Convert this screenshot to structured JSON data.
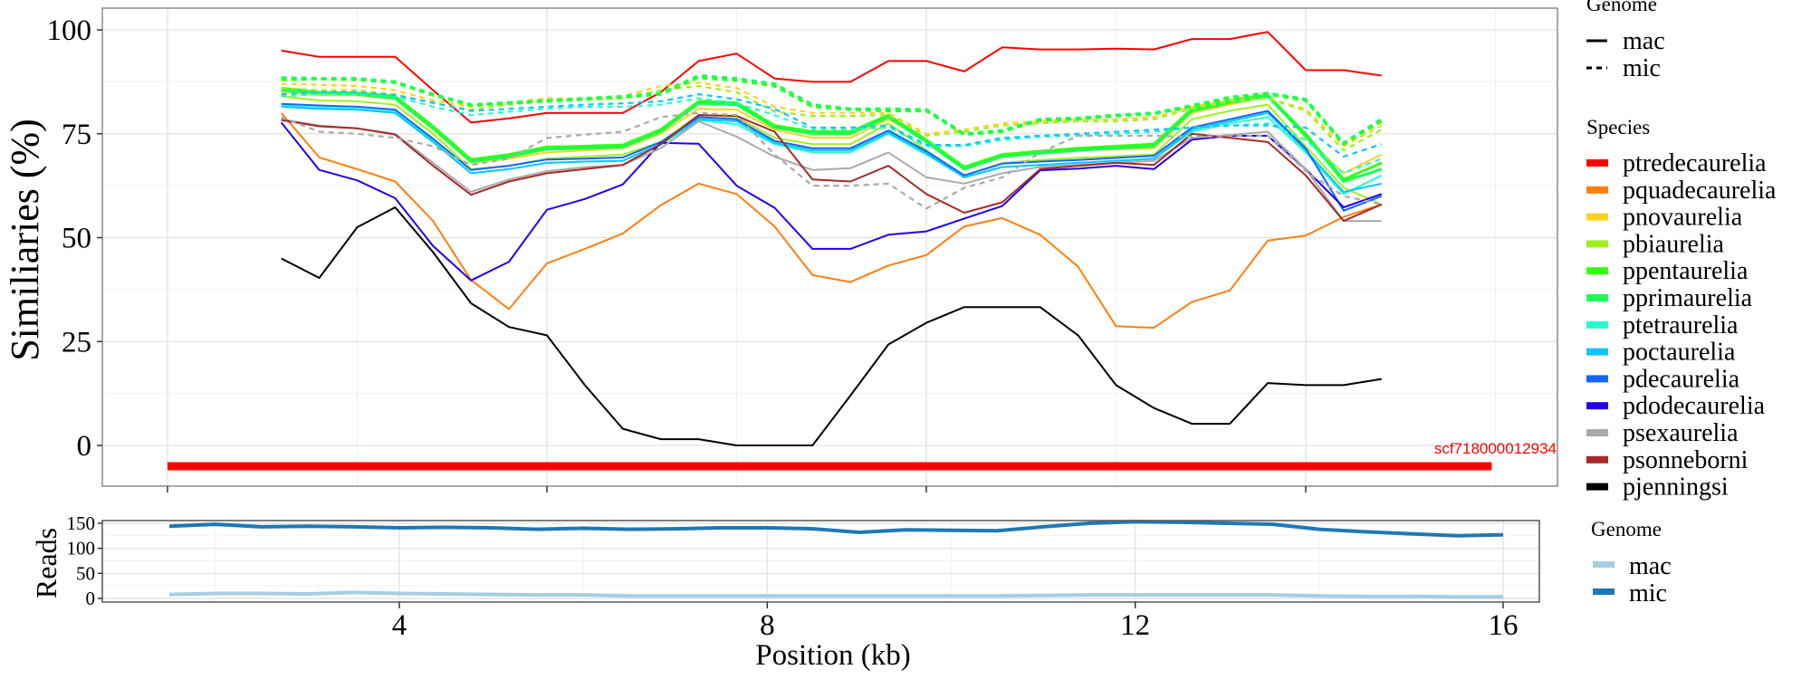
{
  "chart_data": [
    {
      "type": "line",
      "panel": "similarity",
      "title": "",
      "xlabel": "",
      "ylabel": "Similiaries (%)",
      "xlim": [
        -0.3,
        19.2
      ],
      "ylim": [
        -8,
        105
      ],
      "x_ticks": [
        0,
        5,
        10,
        15
      ],
      "x_tick_labels_shown": false,
      "y_ticks": [
        0,
        25,
        50,
        75,
        100
      ],
      "y_tick_labels": [
        "0",
        "25",
        "50",
        "75",
        "100"
      ],
      "grid": true,
      "x": [
        1.5,
        2.0,
        2.5,
        3.0,
        3.5,
        4.0,
        4.5,
        5.0,
        5.5,
        6.0,
        6.5,
        7.0,
        7.5,
        8.0,
        8.5,
        9.0,
        9.5,
        10.0,
        10.5,
        11.0,
        11.5,
        12.0,
        12.5,
        13.0,
        13.5,
        14.0,
        14.5,
        15.0,
        15.5,
        16.0
      ],
      "scaffold": {
        "label": "scf718000012934",
        "start": 0,
        "end": 17.45,
        "y": -5,
        "color": "#ff0000"
      },
      "legend_genome": {
        "title": "Genome",
        "entries": [
          {
            "label": "mac",
            "dash": "solid"
          },
          {
            "label": "mic",
            "dash": "dashed"
          }
        ]
      },
      "legend_species": {
        "title": "Species",
        "entries": [
          {
            "label": "ptredecaurelia",
            "color": "#ff0000"
          },
          {
            "label": "pquadecaurelia",
            "color": "#ff7f0e"
          },
          {
            "label": "pnovaurelia",
            "color": "#ffd21e"
          },
          {
            "label": "pbiaurelia",
            "color": "#a0f020"
          },
          {
            "label": "ppentaurelia",
            "color": "#33ff11"
          },
          {
            "label": "pprimaurelia",
            "color": "#1aff55"
          },
          {
            "label": "ptetraurelia",
            "color": "#22ffcc"
          },
          {
            "label": "poctaurelia",
            "color": "#11c4ff"
          },
          {
            "label": "pdecaurelia",
            "color": "#1166ff"
          },
          {
            "label": "pdodecaurelia",
            "color": "#2200ee"
          },
          {
            "label": "psexaurelia",
            "color": "#aaaaaa"
          },
          {
            "label": "psonneborni",
            "color": "#a52a2a"
          },
          {
            "label": "pjenningsi",
            "color": "#000000"
          }
        ]
      },
      "series": [
        {
          "name": "ptredecaurelia",
          "genome": "mac",
          "values": [
            95,
            93.5,
            93.5,
            93.5,
            85.5,
            77.7,
            78.7,
            80,
            80,
            80,
            85,
            92.5,
            94.3,
            88.3,
            87.5,
            87.5,
            92.5,
            92.5,
            90,
            95.8,
            95.3,
            95.3,
            95.5,
            95.3,
            97.8,
            97.8,
            99.5,
            90.3,
            90.3,
            89
          ]
        },
        {
          "name": "pquadecaurelia",
          "genome": "mac",
          "values": [
            80,
            69.3,
            66.5,
            63.5,
            54,
            39.8,
            32.8,
            43.8,
            47.3,
            51,
            57.8,
            63,
            60.5,
            52.7,
            41,
            39.3,
            43.3,
            45.8,
            52.7,
            54.7,
            50.7,
            43,
            28.7,
            28.3,
            34.5,
            37.3,
            49.3,
            50.5,
            55,
            58
          ]
        },
        {
          "name": "pnovaurelia",
          "genome": "mac",
          "values": [
            85,
            84.3,
            84.3,
            83.3,
            76,
            68,
            69,
            70.5,
            71,
            71.5,
            75,
            81,
            80.8,
            76,
            74,
            74,
            78.5,
            73.5,
            66.5,
            69.5,
            70.3,
            71,
            71.3,
            71.5,
            80,
            82,
            84,
            74,
            65.5,
            70
          ]
        },
        {
          "name": "pbiaurelia",
          "genome": "mac",
          "values": [
            84,
            83,
            82.8,
            82,
            75,
            66.5,
            67.3,
            69,
            69.5,
            70,
            73,
            79.5,
            79,
            74,
            72.5,
            72.5,
            77.5,
            71,
            65,
            68,
            68.7,
            69.2,
            69.6,
            70,
            78.5,
            80.5,
            82,
            72,
            62,
            58
          ]
        },
        {
          "name": "ppentaurelia",
          "genome": "mac",
          "values": [
            86,
            85,
            84.8,
            84,
            76.8,
            68.8,
            70,
            71.8,
            72,
            72.3,
            76,
            82.8,
            82.5,
            77,
            75.5,
            75.5,
            79.5,
            73.5,
            67,
            70,
            70.8,
            71.5,
            72,
            72.5,
            81,
            83,
            84.3,
            75,
            64,
            68
          ]
        },
        {
          "name": "pprimaurelia",
          "genome": "mac",
          "values": [
            85.5,
            84.8,
            84.5,
            83.5,
            76.3,
            68.3,
            69.5,
            71.3,
            71.5,
            71.8,
            75.5,
            82.3,
            82,
            76.5,
            75,
            75,
            79,
            73,
            66.5,
            69.5,
            70.3,
            71,
            71.5,
            72,
            80.5,
            82.5,
            84,
            74.5,
            63.5,
            66.5
          ]
        },
        {
          "name": "ptetraurelia",
          "genome": "mac",
          "values": [
            81.8,
            81.3,
            81,
            80.3,
            73.3,
            65.5,
            66.5,
            68,
            68.3,
            68.5,
            72.3,
            78.3,
            77.3,
            72.5,
            70.5,
            70.5,
            75,
            70,
            64.5,
            67,
            67.5,
            68,
            68.5,
            69,
            75.5,
            77.5,
            79,
            70.5,
            60.5,
            65
          ]
        },
        {
          "name": "poctaurelia",
          "genome": "mac",
          "values": [
            81.5,
            81,
            80.8,
            80,
            73,
            65.5,
            66.5,
            68,
            68.3,
            68.5,
            72.5,
            78.5,
            78,
            72.8,
            71,
            71,
            75.3,
            70.3,
            64.5,
            67,
            67.5,
            68,
            68.5,
            69,
            76,
            78,
            80,
            71,
            61,
            63
          ]
        },
        {
          "name": "pdecaurelia",
          "genome": "mac",
          "values": [
            82.2,
            81.8,
            81.5,
            80.8,
            73.8,
            66.3,
            67.3,
            68.8,
            69,
            69.3,
            73,
            79,
            78.5,
            73.3,
            71.5,
            71.5,
            75.8,
            70.8,
            65,
            67.8,
            68.3,
            68.7,
            69.2,
            69.7,
            76.5,
            78.5,
            80.5,
            71.5,
            56.5,
            60
          ]
        },
        {
          "name": "pdodecaurelia",
          "genome": "mac",
          "values": [
            77.7,
            66.3,
            63.8,
            59.5,
            48,
            39.7,
            44.2,
            56.7,
            59.3,
            62.8,
            72.8,
            72.6,
            62.5,
            57.2,
            47.3,
            47.3,
            50.7,
            51.5,
            54.6,
            57.6,
            66.2,
            66.6,
            67.3,
            66.5,
            73.6,
            74.5,
            74.5,
            66.5,
            57.3,
            60.5
          ]
        },
        {
          "name": "psexaurelia",
          "genome": "mac",
          "values": [
            78.5,
            77,
            76.3,
            75,
            68,
            61,
            64,
            66,
            67,
            67.5,
            71.5,
            78,
            74.3,
            69.5,
            66.3,
            66.7,
            70.5,
            64.5,
            63,
            65.5,
            67,
            67.5,
            68,
            68.5,
            74,
            74.7,
            75.5,
            66.5,
            54,
            54
          ]
        },
        {
          "name": "psonneborni",
          "genome": "mac",
          "values": [
            78.3,
            76.8,
            76.3,
            74.8,
            67.3,
            60.3,
            63.5,
            65.5,
            66.5,
            67.5,
            72.5,
            79.5,
            79.3,
            75.5,
            64,
            63.5,
            67.3,
            60.5,
            56,
            58.5,
            66.5,
            67.3,
            68,
            67.5,
            75,
            74,
            73,
            65,
            54,
            58
          ]
        },
        {
          "name": "pjenningsi",
          "genome": "mac",
          "values": [
            45,
            40.3,
            52.5,
            57.3,
            46.5,
            34.2,
            28.5,
            26.5,
            14.5,
            4,
            1.5,
            1.5,
            0,
            0,
            0,
            12,
            24.3,
            29.5,
            33.3,
            33.3,
            33.3,
            26.5,
            14.5,
            9,
            5.2,
            5.2,
            15,
            14.5,
            14.5,
            16
          ]
        },
        {
          "name": "pnovaurelia",
          "genome": "mic",
          "values": [
            87,
            86.8,
            86.5,
            85.5,
            83,
            81.5,
            82.5,
            83.5,
            83.5,
            84,
            86.5,
            87.3,
            86,
            81.5,
            80,
            80,
            80,
            75,
            76,
            77.5,
            78,
            78.5,
            78.5,
            79,
            81.5,
            83,
            83.5,
            81,
            72,
            77
          ]
        },
        {
          "name": "pbiaurelia",
          "genome": "mic",
          "values": [
            86,
            85.5,
            85.5,
            84.5,
            82.3,
            80.8,
            82,
            83,
            83.3,
            83.5,
            85.5,
            86.5,
            85,
            80.3,
            79.3,
            79.3,
            79.5,
            74.5,
            75.5,
            77,
            77.5,
            78,
            78,
            78.5,
            81,
            82.8,
            83.5,
            80.5,
            71,
            76
          ]
        },
        {
          "name": "ppentaurelia",
          "genome": "mic",
          "values": [
            88,
            88.2,
            88,
            87.3,
            84.3,
            81.8,
            82.3,
            82.8,
            83.3,
            83.8,
            84.5,
            88.5,
            87.8,
            86.5,
            81.5,
            80.8,
            80.5,
            80.5,
            74.8,
            75.5,
            78.2,
            78.5,
            79.3,
            79.8,
            81.5,
            83.5,
            84.5,
            83,
            72.5,
            78
          ]
        },
        {
          "name": "pprimaurelia",
          "genome": "mic",
          "values": [
            88.5,
            88.3,
            88.3,
            87.5,
            84.5,
            82,
            82.5,
            83,
            83.5,
            84,
            84.8,
            89,
            88.3,
            87,
            82,
            81,
            81,
            80.8,
            75,
            75.8,
            78.5,
            78.8,
            79.5,
            80,
            81.8,
            83.8,
            84.8,
            83.3,
            72.8,
            78.5
          ]
        },
        {
          "name": "ptetraurelia",
          "genome": "mic",
          "values": [
            84,
            84.5,
            84.5,
            84,
            81.5,
            79.5,
            80.3,
            81,
            81.5,
            81.5,
            82,
            83.5,
            82.3,
            79.5,
            76,
            76,
            76.5,
            72,
            72,
            73.5,
            74.3,
            74.5,
            75,
            75.5,
            76.5,
            77,
            77.5,
            73.5,
            65.5,
            69
          ]
        },
        {
          "name": "poctaurelia",
          "genome": "mic",
          "values": [
            84.5,
            85,
            85,
            84.3,
            82.5,
            80.5,
            81,
            81.5,
            82,
            82.3,
            82.8,
            84.5,
            83.3,
            81,
            76.5,
            76.5,
            77,
            72.3,
            72.3,
            74,
            74.5,
            75,
            75.5,
            76,
            76.5,
            77,
            77,
            76.5,
            69.5,
            72.5
          ]
        },
        {
          "name": "psexaurelia",
          "genome": "mic",
          "values": [
            79,
            75.5,
            75,
            74,
            72,
            67.5,
            69,
            74,
            74.8,
            75.5,
            79,
            80,
            79.5,
            70,
            62.5,
            62.5,
            63,
            57,
            62,
            64.5,
            70.5,
            74.5,
            74.5,
            74.5,
            74.3,
            74.5,
            74.5,
            66,
            60,
            58
          ]
        }
      ]
    },
    {
      "type": "line",
      "panel": "reads",
      "title": "",
      "xlabel": "Position (kb)",
      "ylabel": "Reads",
      "xlim": [
        0.8,
        17.0
      ],
      "ylim": [
        -5,
        165
      ],
      "x_ticks": [
        4,
        8,
        12,
        16
      ],
      "x_tick_labels": [
        "4",
        "8",
        "12",
        "16"
      ],
      "y_ticks": [
        0,
        50,
        100,
        150
      ],
      "y_tick_labels": [
        "0",
        "50",
        "100",
        "150"
      ],
      "grid": true,
      "x": [
        1.5,
        2.0,
        2.5,
        3.0,
        3.5,
        4.0,
        4.5,
        5.0,
        5.5,
        6.0,
        6.5,
        7.0,
        7.5,
        8.0,
        8.5,
        9.0,
        9.5,
        10.0,
        10.5,
        11.0,
        11.5,
        12.0,
        12.5,
        13.0,
        13.5,
        14.0,
        14.5,
        15.0,
        15.5,
        16.0
      ],
      "legend": {
        "title": "Genome",
        "entries": [
          {
            "label": "mac",
            "color": "#a6cee3"
          },
          {
            "label": "mic",
            "color": "#1f78b4"
          }
        ]
      },
      "series": [
        {
          "name": "mac",
          "color": "#a6cee3",
          "values": [
            8,
            10,
            10,
            9,
            12,
            10,
            9,
            8,
            7,
            7,
            5,
            5,
            5,
            5,
            5,
            5,
            5,
            5,
            5,
            6,
            7,
            7,
            7,
            7,
            7,
            5,
            4,
            4,
            3,
            3
          ]
        },
        {
          "name": "mic",
          "color": "#1f78b4",
          "values": [
            144,
            148,
            143,
            144,
            143,
            141,
            142,
            141,
            138,
            140,
            138,
            139,
            141,
            141,
            139,
            132,
            137,
            136,
            135,
            143,
            150,
            153,
            152,
            150,
            148,
            138,
            133,
            129,
            125,
            127
          ]
        }
      ]
    }
  ]
}
